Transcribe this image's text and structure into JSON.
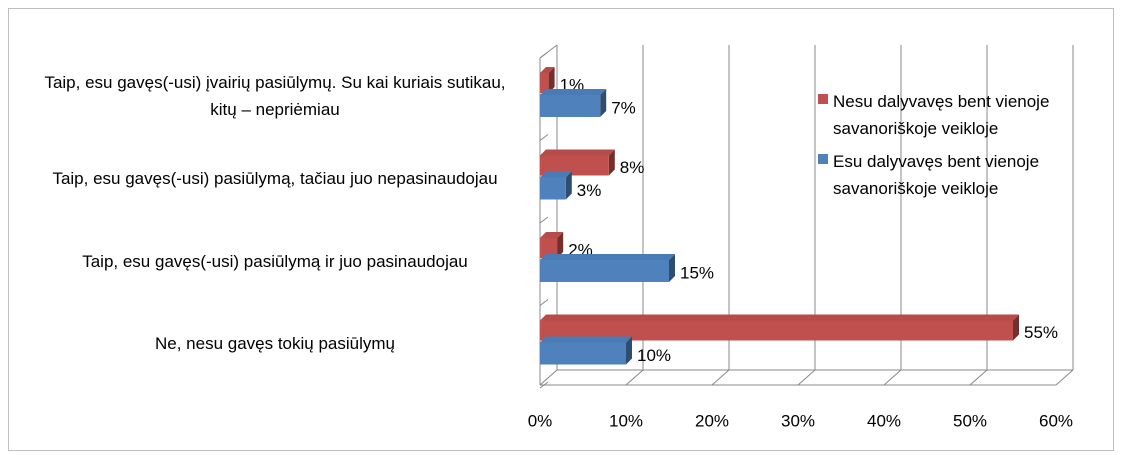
{
  "chart_data": {
    "type": "bar",
    "orientation": "horizontal",
    "categories": [
      "Taip, esu gavęs(-usi) įvairių pasiūlymų. Su kai kuriais sutikau, kitų – nepriėmiau",
      "Taip, esu gavęs(-usi) pasiūlymą, tačiau juo nepasinaudojau",
      "Taip, esu gavęs(-usi) pasiūlymą ir juo pasinaudojau",
      "Ne, nesu gavęs tokių pasiūlymų"
    ],
    "series": [
      {
        "name": "Nesu dalyvavęs bent vienoje savanoriškoje veikloje",
        "color": "#c0504d",
        "values": [
          1,
          8,
          2,
          55
        ],
        "value_labels": [
          "1%",
          "8%",
          "2%",
          "55%"
        ]
      },
      {
        "name": "Esu dalyvavęs bent vienoje savanoriškoje veikloje",
        "color": "#4f81bd",
        "values": [
          7,
          3,
          15,
          10
        ],
        "value_labels": [
          "7%",
          "3%",
          "15%",
          "10%"
        ]
      }
    ],
    "xlim": [
      0,
      60
    ],
    "xticks": [
      {
        "value": 0,
        "label": "0%"
      },
      {
        "value": 10,
        "label": "10%"
      },
      {
        "value": 20,
        "label": "20%"
      },
      {
        "value": 30,
        "label": "30%"
      },
      {
        "value": 40,
        "label": "40%"
      },
      {
        "value": 50,
        "label": "50%"
      },
      {
        "value": 60,
        "label": "60%"
      }
    ],
    "grid": true,
    "legend": "right"
  }
}
